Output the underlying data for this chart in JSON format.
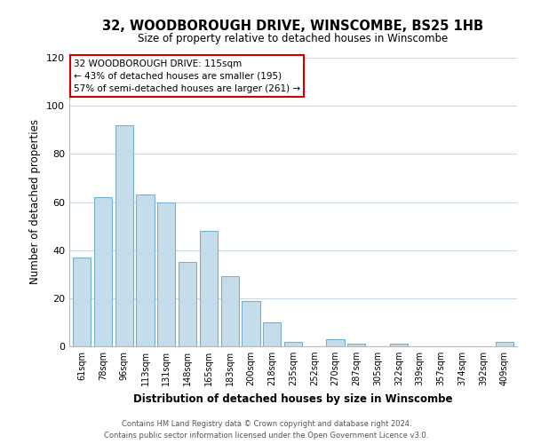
{
  "title": "32, WOODBOROUGH DRIVE, WINSCOMBE, BS25 1HB",
  "subtitle": "Size of property relative to detached houses in Winscombe",
  "xlabel": "Distribution of detached houses by size in Winscombe",
  "ylabel": "Number of detached properties",
  "categories": [
    "61sqm",
    "78sqm",
    "96sqm",
    "113sqm",
    "131sqm",
    "148sqm",
    "165sqm",
    "183sqm",
    "200sqm",
    "218sqm",
    "235sqm",
    "252sqm",
    "270sqm",
    "287sqm",
    "305sqm",
    "322sqm",
    "339sqm",
    "357sqm",
    "374sqm",
    "392sqm",
    "409sqm"
  ],
  "values": [
    37,
    62,
    92,
    63,
    60,
    35,
    48,
    29,
    19,
    10,
    2,
    0,
    3,
    1,
    0,
    1,
    0,
    0,
    0,
    0,
    2
  ],
  "bar_color": "#c5dcea",
  "bar_edge_color": "#7ab0cc",
  "annotation_line1": "32 WOODBOROUGH DRIVE: 115sqm",
  "annotation_line2": "← 43% of detached houses are smaller (195)",
  "annotation_line3": "57% of semi-detached houses are larger (261) →",
  "annotation_box_edge_color": "#cc0000",
  "annotation_box_face_color": "#ffffff",
  "ylim": [
    0,
    120
  ],
  "yticks": [
    0,
    20,
    40,
    60,
    80,
    100,
    120
  ],
  "footer_line1": "Contains HM Land Registry data © Crown copyright and database right 2024.",
  "footer_line2": "Contains public sector information licensed under the Open Government Licence v3.0.",
  "background_color": "#ffffff",
  "grid_color": "#c8d8e8"
}
